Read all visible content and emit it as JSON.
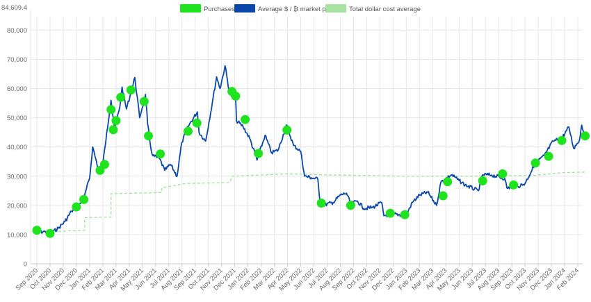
{
  "chart_data": {
    "type": "line",
    "title": "",
    "xlabel": "",
    "ylabel": "",
    "ylim": [
      0,
      84609.4
    ],
    "y_top_label": "84,609.4",
    "y_ticks": [
      0,
      10000,
      20000,
      30000,
      40000,
      50000,
      60000,
      70000,
      80000
    ],
    "y_tick_labels": [
      "0",
      "10,000",
      "20,000",
      "30,000",
      "40,000",
      "50,000",
      "60,000",
      "70,000",
      "80,000"
    ],
    "x_tick_labels": [
      "Sep 2020",
      "Oct 2020",
      "Nov 2020",
      "Dec 2020",
      "Jan 2021",
      "Feb 2021",
      "Mar 2021",
      "Apr 2021",
      "May 2021",
      "Jun 2021",
      "Jul 2021",
      "Aug 2021",
      "Sep 2021",
      "Oct 2021",
      "Nov 2021",
      "Dec 2021",
      "Jan 2022",
      "Feb 2022",
      "Mar 2022",
      "Apr 2022",
      "May 2022",
      "Jun 2022",
      "Jul 2022",
      "Aug 2022",
      "Sep 2022",
      "Oct 2022",
      "Nov 2022",
      "Dec 2022",
      "Jan 2023",
      "Feb 2023",
      "Mar 2023",
      "Apr 2023",
      "May 2023",
      "Jun 2023",
      "Jul 2023",
      "Aug 2023",
      "Sep 2023",
      "Oct 2023",
      "Nov 2023",
      "Dec 2023",
      "Jan 2024",
      "Feb 2024"
    ],
    "legend_position": "top-center",
    "grid": true,
    "series": [
      {
        "name": "Purchases",
        "kind": "scatter",
        "color": "#1ee31e",
        "points": [
          {
            "x": "2020-09-01",
            "y": 11500
          },
          {
            "x": "2020-10-01",
            "y": 10400
          },
          {
            "x": "2020-12-01",
            "y": 19500
          },
          {
            "x": "2020-12-18",
            "y": 22000
          },
          {
            "x": "2021-01-25",
            "y": 32000
          },
          {
            "x": "2021-02-05",
            "y": 34000
          },
          {
            "x": "2021-02-20",
            "y": 52800
          },
          {
            "x": "2021-02-25",
            "y": 45900
          },
          {
            "x": "2021-03-01",
            "y": 49000
          },
          {
            "x": "2021-03-12",
            "y": 57000
          },
          {
            "x": "2021-04-05",
            "y": 59500
          },
          {
            "x": "2021-05-05",
            "y": 55600
          },
          {
            "x": "2021-05-15",
            "y": 43800
          },
          {
            "x": "2021-06-12",
            "y": 37600
          },
          {
            "x": "2021-08-15",
            "y": 45400
          },
          {
            "x": "2021-09-05",
            "y": 48200
          },
          {
            "x": "2021-11-25",
            "y": 59000
          },
          {
            "x": "2021-12-03",
            "y": 57400
          },
          {
            "x": "2021-12-25",
            "y": 49400
          },
          {
            "x": "2022-01-25",
            "y": 37800
          },
          {
            "x": "2022-03-30",
            "y": 45800
          },
          {
            "x": "2022-06-18",
            "y": 20800
          },
          {
            "x": "2022-08-25",
            "y": 20000
          },
          {
            "x": "2022-11-25",
            "y": 17300
          },
          {
            "x": "2022-12-28",
            "y": 16800
          },
          {
            "x": "2023-03-25",
            "y": 23300
          },
          {
            "x": "2023-04-05",
            "y": 28100
          },
          {
            "x": "2023-06-25",
            "y": 28400
          },
          {
            "x": "2023-08-10",
            "y": 30800
          },
          {
            "x": "2023-09-05",
            "y": 27000
          },
          {
            "x": "2023-10-25",
            "y": 34500
          },
          {
            "x": "2023-11-25",
            "y": 36800
          },
          {
            "x": "2023-12-25",
            "y": 42200
          },
          {
            "x": "2024-02-18",
            "y": 43800
          }
        ]
      },
      {
        "name": "Average $ / ₿ market price",
        "kind": "line",
        "color": "#0a47a9",
        "points": [
          {
            "x": "2020-08-25",
            "y": 11600
          },
          {
            "x": "2020-09-05",
            "y": 10900
          },
          {
            "x": "2020-09-20",
            "y": 11000
          },
          {
            "x": "2020-10-05",
            "y": 10700
          },
          {
            "x": "2020-10-20",
            "y": 12200
          },
          {
            "x": "2020-11-05",
            "y": 14500
          },
          {
            "x": "2020-11-20",
            "y": 18000
          },
          {
            "x": "2020-12-05",
            "y": 19200
          },
          {
            "x": "2020-12-20",
            "y": 23500
          },
          {
            "x": "2021-01-01",
            "y": 29300
          },
          {
            "x": "2021-01-08",
            "y": 40000
          },
          {
            "x": "2021-01-15",
            "y": 36000
          },
          {
            "x": "2021-01-22",
            "y": 32000
          },
          {
            "x": "2021-02-01",
            "y": 34000
          },
          {
            "x": "2021-02-10",
            "y": 45000
          },
          {
            "x": "2021-02-20",
            "y": 56000
          },
          {
            "x": "2021-02-28",
            "y": 46000
          },
          {
            "x": "2021-03-10",
            "y": 54000
          },
          {
            "x": "2021-03-15",
            "y": 60500
          },
          {
            "x": "2021-03-25",
            "y": 53000
          },
          {
            "x": "2021-04-05",
            "y": 58500
          },
          {
            "x": "2021-04-14",
            "y": 63800
          },
          {
            "x": "2021-04-25",
            "y": 50000
          },
          {
            "x": "2021-05-08",
            "y": 58000
          },
          {
            "x": "2021-05-13",
            "y": 48000
          },
          {
            "x": "2021-05-20",
            "y": 40000
          },
          {
            "x": "2021-05-25",
            "y": 37000
          },
          {
            "x": "2021-06-10",
            "y": 36000
          },
          {
            "x": "2021-06-22",
            "y": 32000
          },
          {
            "x": "2021-07-05",
            "y": 34000
          },
          {
            "x": "2021-07-20",
            "y": 30000
          },
          {
            "x": "2021-07-31",
            "y": 41500
          },
          {
            "x": "2021-08-15",
            "y": 47000
          },
          {
            "x": "2021-09-06",
            "y": 52000
          },
          {
            "x": "2021-09-10",
            "y": 45000
          },
          {
            "x": "2021-09-25",
            "y": 42000
          },
          {
            "x": "2021-10-10",
            "y": 55000
          },
          {
            "x": "2021-10-20",
            "y": 64000
          },
          {
            "x": "2021-10-28",
            "y": 60000
          },
          {
            "x": "2021-11-09",
            "y": 67800
          },
          {
            "x": "2021-11-20",
            "y": 58000
          },
          {
            "x": "2021-12-03",
            "y": 56500
          },
          {
            "x": "2021-12-05",
            "y": 49000
          },
          {
            "x": "2021-12-20",
            "y": 47000
          },
          {
            "x": "2022-01-05",
            "y": 43000
          },
          {
            "x": "2022-01-22",
            "y": 35500
          },
          {
            "x": "2022-02-10",
            "y": 44000
          },
          {
            "x": "2022-02-25",
            "y": 38000
          },
          {
            "x": "2022-03-10",
            "y": 39000
          },
          {
            "x": "2022-03-29",
            "y": 47500
          },
          {
            "x": "2022-04-15",
            "y": 40500
          },
          {
            "x": "2022-05-01",
            "y": 38500
          },
          {
            "x": "2022-05-10",
            "y": 30000
          },
          {
            "x": "2022-05-25",
            "y": 29500
          },
          {
            "x": "2022-06-10",
            "y": 29000
          },
          {
            "x": "2022-06-15",
            "y": 21500
          },
          {
            "x": "2022-06-20",
            "y": 20000
          },
          {
            "x": "2022-07-15",
            "y": 21000
          },
          {
            "x": "2022-08-01",
            "y": 23500
          },
          {
            "x": "2022-08-15",
            "y": 24200
          },
          {
            "x": "2022-08-25",
            "y": 20500
          },
          {
            "x": "2022-09-10",
            "y": 21500
          },
          {
            "x": "2022-09-25",
            "y": 19000
          },
          {
            "x": "2022-10-15",
            "y": 19300
          },
          {
            "x": "2022-11-05",
            "y": 21000
          },
          {
            "x": "2022-11-10",
            "y": 16500
          },
          {
            "x": "2022-12-01",
            "y": 17000
          },
          {
            "x": "2022-12-31",
            "y": 16600
          },
          {
            "x": "2023-01-15",
            "y": 21000
          },
          {
            "x": "2023-02-01",
            "y": 23500
          },
          {
            "x": "2023-02-20",
            "y": 24500
          },
          {
            "x": "2023-03-10",
            "y": 20000
          },
          {
            "x": "2023-03-20",
            "y": 28000
          },
          {
            "x": "2023-04-14",
            "y": 30500
          },
          {
            "x": "2023-05-01",
            "y": 28500
          },
          {
            "x": "2023-05-15",
            "y": 27000
          },
          {
            "x": "2023-06-15",
            "y": 25000
          },
          {
            "x": "2023-06-25",
            "y": 30500
          },
          {
            "x": "2023-07-15",
            "y": 30400
          },
          {
            "x": "2023-08-15",
            "y": 29200
          },
          {
            "x": "2023-08-20",
            "y": 26000
          },
          {
            "x": "2023-09-15",
            "y": 26500
          },
          {
            "x": "2023-10-01",
            "y": 27500
          },
          {
            "x": "2023-10-25",
            "y": 34500
          },
          {
            "x": "2023-11-15",
            "y": 37000
          },
          {
            "x": "2023-12-05",
            "y": 42000
          },
          {
            "x": "2023-12-25",
            "y": 43000
          },
          {
            "x": "2024-01-11",
            "y": 46800
          },
          {
            "x": "2024-01-22",
            "y": 39500
          },
          {
            "x": "2024-02-05",
            "y": 42500
          },
          {
            "x": "2024-02-10",
            "y": 47500
          },
          {
            "x": "2024-02-15",
            "y": 45000
          }
        ]
      },
      {
        "name": "Total dollar cost average",
        "kind": "line",
        "color": "#a6e3a1",
        "points": [
          {
            "x": "2020-08-25",
            "y": 11700
          },
          {
            "x": "2020-10-01",
            "y": 11000
          },
          {
            "x": "2020-12-20",
            "y": 11500
          },
          {
            "x": "2020-12-20",
            "y": 15800
          },
          {
            "x": "2021-02-20",
            "y": 16000
          },
          {
            "x": "2021-02-20",
            "y": 24000
          },
          {
            "x": "2021-06-15",
            "y": 24400
          },
          {
            "x": "2021-06-15",
            "y": 26000
          },
          {
            "x": "2021-08-10",
            "y": 27500
          },
          {
            "x": "2021-11-20",
            "y": 27800
          },
          {
            "x": "2021-11-25",
            "y": 30000
          },
          {
            "x": "2022-03-30",
            "y": 30800
          },
          {
            "x": "2022-06-18",
            "y": 30500
          },
          {
            "x": "2022-12-28",
            "y": 30000
          },
          {
            "x": "2023-06-25",
            "y": 30000
          },
          {
            "x": "2023-10-25",
            "y": 30300
          },
          {
            "x": "2023-12-25",
            "y": 31200
          },
          {
            "x": "2024-02-20",
            "y": 31400
          }
        ]
      }
    ]
  }
}
